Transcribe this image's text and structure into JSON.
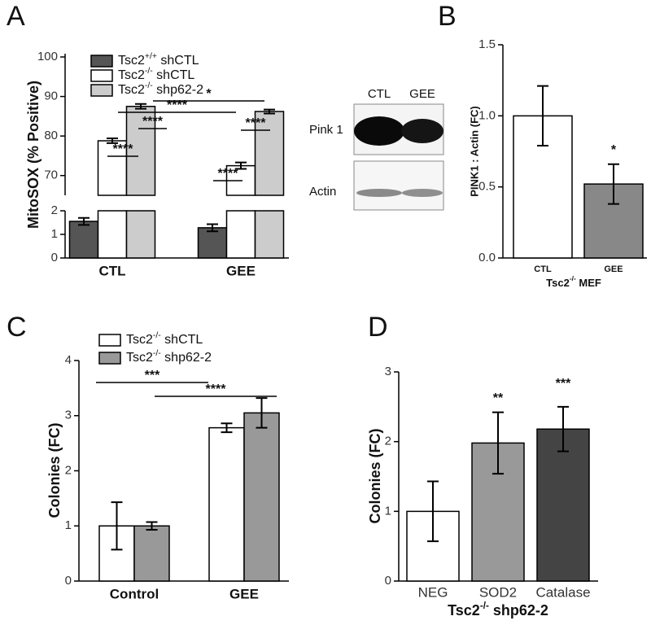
{
  "blot": {
    "lanes": [
      "CTL",
      "GEE"
    ],
    "rows": [
      "Pink 1",
      "Actin"
    ]
  },
  "chart_data": [
    {
      "type": "bar",
      "panel": "A",
      "ylabel": "MitoSOX (% Positive)",
      "categories": [
        "CTL",
        "GEE"
      ],
      "series": [
        {
          "name": "Tsc2+/+ shCTL",
          "color": "#555555",
          "values": [
            1.55,
            1.28
          ],
          "errors": [
            0.15,
            0.15
          ]
        },
        {
          "name": "Tsc2-/- shCTL",
          "color": "#ffffff",
          "values": [
            78.8,
            72.5
          ],
          "errors": [
            0.6,
            0.8
          ]
        },
        {
          "name": "Tsc2-/- shp62-2",
          "color": "#cccccc",
          "values": [
            87.5,
            86.2
          ],
          "errors": [
            0.6,
            0.5
          ]
        }
      ],
      "ylim": [
        0,
        100
      ],
      "ybreak": [
        2,
        65
      ],
      "yticks": [
        0,
        1,
        2,
        70,
        80,
        90,
        100
      ],
      "legend": "top-left",
      "annotations": [
        "****",
        "****",
        "****",
        "*",
        "****",
        "****"
      ]
    },
    {
      "type": "bar",
      "panel": "B",
      "ylabel": "PINK1 : Actin (FC)",
      "xlabel": "Tsc2-/- MEF",
      "categories": [
        "CTL",
        "GEE"
      ],
      "values": [
        1.0,
        0.52
      ],
      "errors": [
        0.21,
        0.14
      ],
      "colors": [
        "#ffffff",
        "#888888"
      ],
      "ylim": [
        0,
        1.5
      ],
      "yticks": [
        {
          "value": 0,
          "label": "0.0"
        },
        {
          "value": 0.5,
          "label": "0.5"
        },
        {
          "value": 1,
          "label": "1.0"
        },
        {
          "value": 1.5,
          "label": "1.5"
        }
      ],
      "annotations": [
        "*"
      ]
    },
    {
      "type": "bar",
      "panel": "C",
      "ylabel": "Colonies (FC)",
      "categories": [
        "Control",
        "GEE"
      ],
      "series": [
        {
          "name": "Tsc2-/- shCTL",
          "color": "#ffffff",
          "values": [
            1.0,
            2.78
          ],
          "errors": [
            0.43,
            0.08
          ]
        },
        {
          "name": "Tsc2-/- shp62-2",
          "color": "#999999",
          "values": [
            1.0,
            3.05
          ],
          "errors": [
            0.07,
            0.27
          ]
        }
      ],
      "ylim": [
        0,
        4
      ],
      "yticks": [
        0,
        1,
        2,
        3,
        4
      ],
      "legend": "top-left",
      "annotations": [
        "***",
        "****"
      ]
    },
    {
      "type": "bar",
      "panel": "D",
      "ylabel": "Colonies (FC)",
      "xlabel": "Tsc2-/- shp62-2",
      "categories": [
        "NEG",
        "SOD2",
        "Catalase"
      ],
      "values": [
        1.0,
        1.98,
        2.18
      ],
      "errors": [
        0.43,
        0.44,
        0.32
      ],
      "colors": [
        "#ffffff",
        "#999999",
        "#444444"
      ],
      "ylim": [
        0,
        3
      ],
      "yticks": [
        0,
        1,
        2,
        3
      ],
      "annotations": [
        "**",
        "***"
      ]
    }
  ]
}
